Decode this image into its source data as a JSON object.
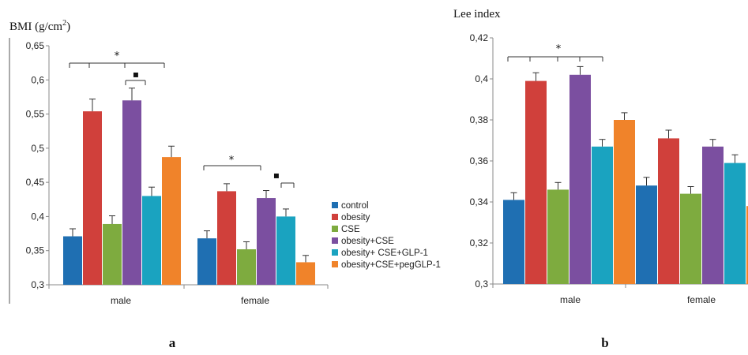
{
  "colors": {
    "control": "#1f6fb2",
    "obesity": "#d0403b",
    "CSE": "#7eab3f",
    "obesity+CSE": "#7b4fa0",
    "obesity+CSE+GLP-1": "#1aa3c0",
    "obesity+CSE+pegGLP-1": "#f0832a"
  },
  "legend": {
    "items": [
      "control",
      "obesity",
      "CSE",
      "obesity+CSE",
      "obesity+ CSE+GLP-1",
      "obesity+CSE+pegGLP-1"
    ]
  },
  "panels": {
    "a": {
      "label": "a"
    },
    "b": {
      "label": "b"
    }
  },
  "chart_data": [
    {
      "type": "bar",
      "ylabel": "BMI (g/cm²)",
      "ylabel_main": "BMI (g/cm",
      "ylabel_sup": "2",
      "ylabel_close": ")",
      "ylim": [
        0.3,
        0.65
      ],
      "yticks": [
        "0,3",
        "0,35",
        "0,4",
        "0,45",
        "0,5",
        "0,55",
        "0,6",
        "0,65"
      ],
      "categories": [
        "male",
        "female"
      ],
      "series": [
        {
          "name": "control",
          "values": [
            0.371,
            0.368
          ],
          "errors": [
            0.011,
            0.011
          ]
        },
        {
          "name": "obesity",
          "values": [
            0.554,
            0.437
          ],
          "errors": [
            0.018,
            0.011
          ]
        },
        {
          "name": "CSE",
          "values": [
            0.389,
            0.352
          ],
          "errors": [
            0.012,
            0.011
          ]
        },
        {
          "name": "obesity+CSE",
          "values": [
            0.57,
            0.427
          ],
          "errors": [
            0.018,
            0.011
          ]
        },
        {
          "name": "obesity+CSE+GLP-1",
          "values": [
            0.43,
            0.4
          ],
          "errors": [
            0.013,
            0.011
          ]
        },
        {
          "name": "obesity+CSE+pegGLP-1",
          "values": [
            0.487,
            0.333
          ],
          "errors": [
            0.016,
            0.01
          ]
        }
      ],
      "annotations": [
        "*",
        "▪",
        "*",
        "▪"
      ]
    },
    {
      "type": "bar",
      "ylabel": "Lee index",
      "ylim": [
        0.3,
        0.42
      ],
      "yticks": [
        "0,3",
        "0,32",
        "0,34",
        "0,36",
        "0,38",
        "0,4",
        "0,42"
      ],
      "categories": [
        "male",
        "female"
      ],
      "series": [
        {
          "name": "control",
          "values": [
            0.341,
            0.348
          ],
          "errors": [
            0.0035,
            0.004
          ]
        },
        {
          "name": "obesity",
          "values": [
            0.399,
            0.371
          ],
          "errors": [
            0.004,
            0.004
          ]
        },
        {
          "name": "CSE",
          "values": [
            0.346,
            0.344
          ],
          "errors": [
            0.0035,
            0.0035
          ]
        },
        {
          "name": "obesity+CSE",
          "values": [
            0.402,
            0.367
          ],
          "errors": [
            0.004,
            0.0035
          ]
        },
        {
          "name": "obesity+CSE+GLP-1",
          "values": [
            0.367,
            0.359
          ],
          "errors": [
            0.0035,
            0.004
          ]
        },
        {
          "name": "obesity+CSE+pegGLP-1",
          "values": [
            0.38,
            0.338
          ],
          "errors": [
            0.0035,
            0.0035
          ]
        }
      ],
      "annotations": [
        "*"
      ]
    }
  ]
}
